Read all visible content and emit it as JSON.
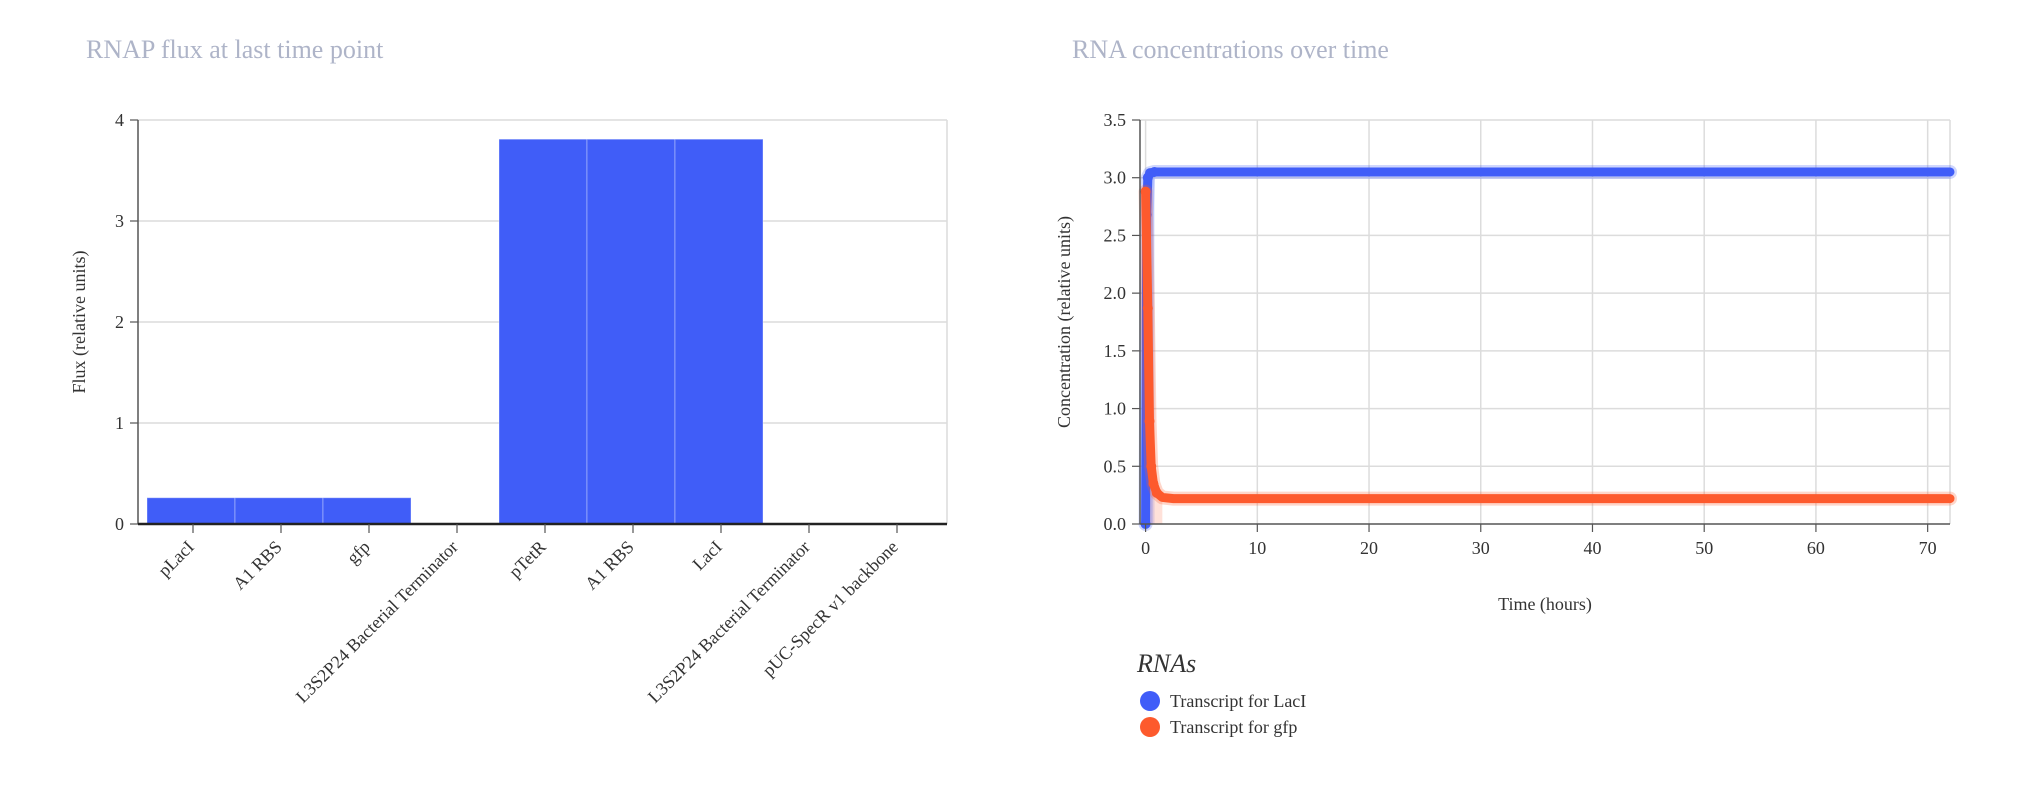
{
  "chart_data": [
    {
      "type": "bar",
      "title": "RNAP flux at last time point",
      "xlabel": "",
      "ylabel": "Flux (relative units)",
      "ylim": [
        0,
        4
      ],
      "yticks": [
        "0",
        "1",
        "2",
        "3",
        "4"
      ],
      "categories": [
        "pLacI",
        "A1 RBS",
        "gfp",
        "L3S2P24 Bacterial Terminator",
        "pTetR",
        "A1 RBS",
        "LacI",
        "L3S2P24 Bacterial Terminator",
        "pUC-SpecR v1 backbone"
      ],
      "values": [
        0.26,
        0.26,
        0.26,
        0,
        3.81,
        3.81,
        3.81,
        0,
        0
      ],
      "color": "#405df8",
      "grid": true
    },
    {
      "type": "scatter",
      "title": "RNA concentrations over time",
      "xlabel": "Time (hours)",
      "ylabel": "Concentration (relative units)",
      "xlim": [
        -0.5,
        72
      ],
      "ylim": [
        0,
        3.5
      ],
      "xticks": [
        "0",
        "10",
        "20",
        "30",
        "40",
        "50",
        "60",
        "70"
      ],
      "yticks": [
        "0.0",
        "0.5",
        "1.0",
        "1.5",
        "2.0",
        "2.5",
        "3.0",
        "3.5"
      ],
      "grid": true,
      "legend_title": "RNAs",
      "legend_position": "bottom-left",
      "series": [
        {
          "name": "Transcript for LacI",
          "color": "#405df8",
          "points": [
            [
              0,
              0
            ],
            [
              0.1,
              2.68
            ],
            [
              0.2,
              3.0
            ],
            [
              0.4,
              3.04
            ],
            [
              0.8,
              3.05
            ],
            [
              72,
              3.05
            ]
          ]
        },
        {
          "name": "Transcript for gfp",
          "color": "#fd5a2d",
          "points": [
            [
              0,
              2.88
            ],
            [
              0.2,
              1.87
            ],
            [
              0.35,
              0.89
            ],
            [
              0.5,
              0.5
            ],
            [
              0.7,
              0.35
            ],
            [
              1.0,
              0.27
            ],
            [
              1.5,
              0.23
            ],
            [
              2.5,
              0.22
            ],
            [
              72,
              0.22
            ]
          ]
        }
      ]
    }
  ]
}
